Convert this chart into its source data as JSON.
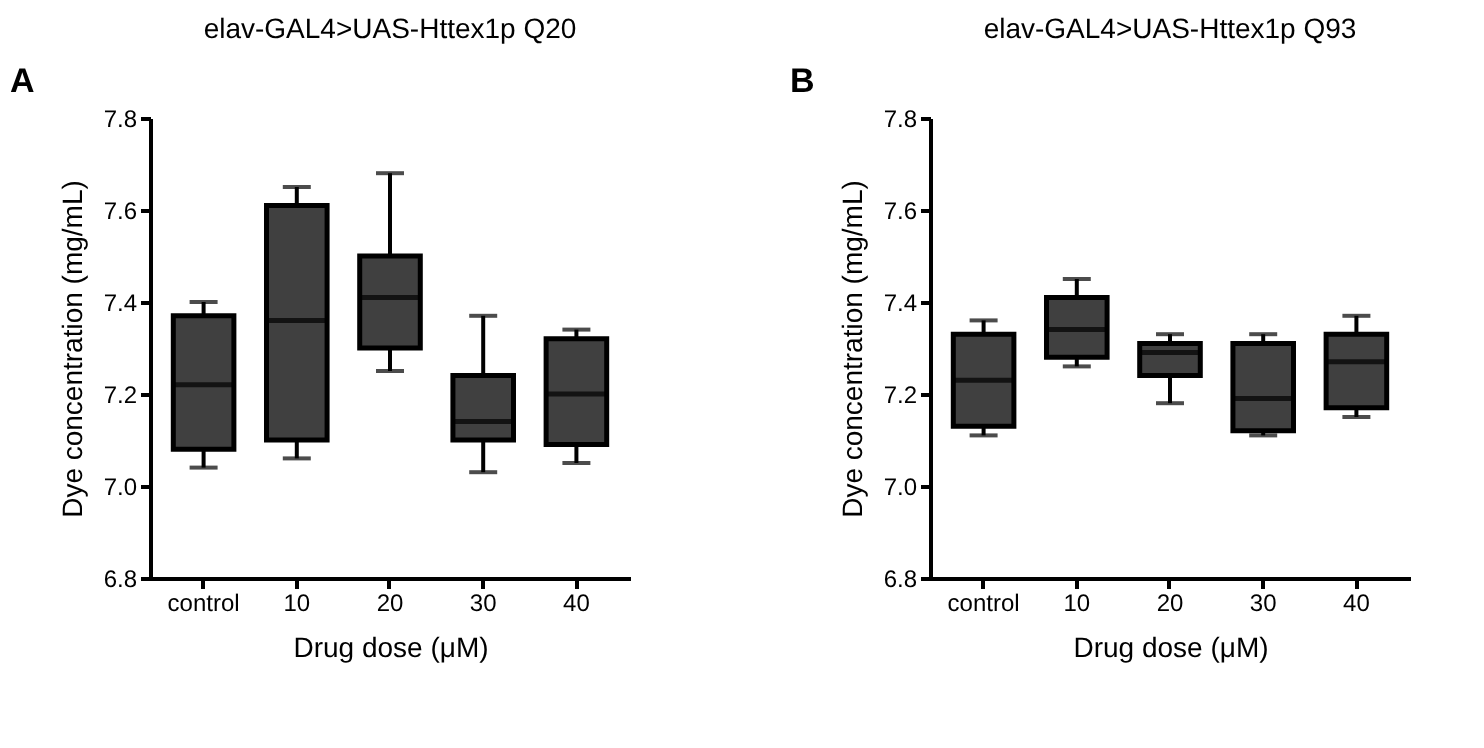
{
  "chart_data": [
    {
      "type": "box",
      "title": "elav-GAL4>UAS-Httex1p Q20",
      "xlabel": "Drug dose (μM)",
      "ylabel": "Dye concentration (mg/mL)",
      "annotations": [
        "A"
      ],
      "categories": [
        "control",
        "10",
        "20",
        "30",
        "40"
      ],
      "ylim": [
        6.8,
        7.8
      ],
      "yticks": [
        {
          "value": 6.8,
          "label": "6.8"
        },
        {
          "value": 7.0,
          "label": "7.0"
        },
        {
          "value": 7.2,
          "label": "7.2"
        },
        {
          "value": 7.4,
          "label": "7.4"
        },
        {
          "value": 7.6,
          "label": "7.6"
        },
        {
          "value": 7.8,
          "label": "7.8"
        }
      ],
      "grid": false,
      "series": [
        {
          "color": "#404040",
          "boxes": [
            {
              "low": 7.04,
              "q1": 7.08,
              "median": 7.22,
              "q3": 7.37,
              "high": 7.4
            },
            {
              "low": 7.06,
              "q1": 7.1,
              "median": 7.36,
              "q3": 7.61,
              "high": 7.65
            },
            {
              "low": 7.25,
              "q1": 7.3,
              "median": 7.41,
              "q3": 7.5,
              "high": 7.68
            },
            {
              "low": 7.03,
              "q1": 7.1,
              "median": 7.14,
              "q3": 7.24,
              "high": 7.37
            },
            {
              "low": 7.05,
              "q1": 7.09,
              "median": 7.2,
              "q3": 7.32,
              "high": 7.34
            }
          ]
        }
      ]
    },
    {
      "type": "box",
      "title": "elav-GAL4>UAS-Httex1p Q93",
      "xlabel": "Drug dose (μM)",
      "ylabel": "Dye concentration (mg/mL)",
      "annotations": [
        "B"
      ],
      "categories": [
        "control",
        "10",
        "20",
        "30",
        "40"
      ],
      "ylim": [
        6.8,
        7.8
      ],
      "yticks": [
        {
          "value": 6.8,
          "label": "6.8"
        },
        {
          "value": 7.0,
          "label": "7.0"
        },
        {
          "value": 7.2,
          "label": "7.2"
        },
        {
          "value": 7.4,
          "label": "7.4"
        },
        {
          "value": 7.6,
          "label": "7.6"
        },
        {
          "value": 7.8,
          "label": "7.8"
        }
      ],
      "grid": false,
      "series": [
        {
          "color": "#404040",
          "boxes": [
            {
              "low": 7.11,
              "q1": 7.13,
              "median": 7.23,
              "q3": 7.33,
              "high": 7.36
            },
            {
              "low": 7.26,
              "q1": 7.28,
              "median": 7.34,
              "q3": 7.41,
              "high": 7.45
            },
            {
              "low": 7.18,
              "q1": 7.24,
              "median": 7.29,
              "q3": 7.31,
              "high": 7.33
            },
            {
              "low": 7.11,
              "q1": 7.12,
              "median": 7.19,
              "q3": 7.31,
              "high": 7.33
            },
            {
              "low": 7.15,
              "q1": 7.17,
              "median": 7.27,
              "q3": 7.33,
              "high": 7.37
            }
          ]
        }
      ]
    }
  ]
}
